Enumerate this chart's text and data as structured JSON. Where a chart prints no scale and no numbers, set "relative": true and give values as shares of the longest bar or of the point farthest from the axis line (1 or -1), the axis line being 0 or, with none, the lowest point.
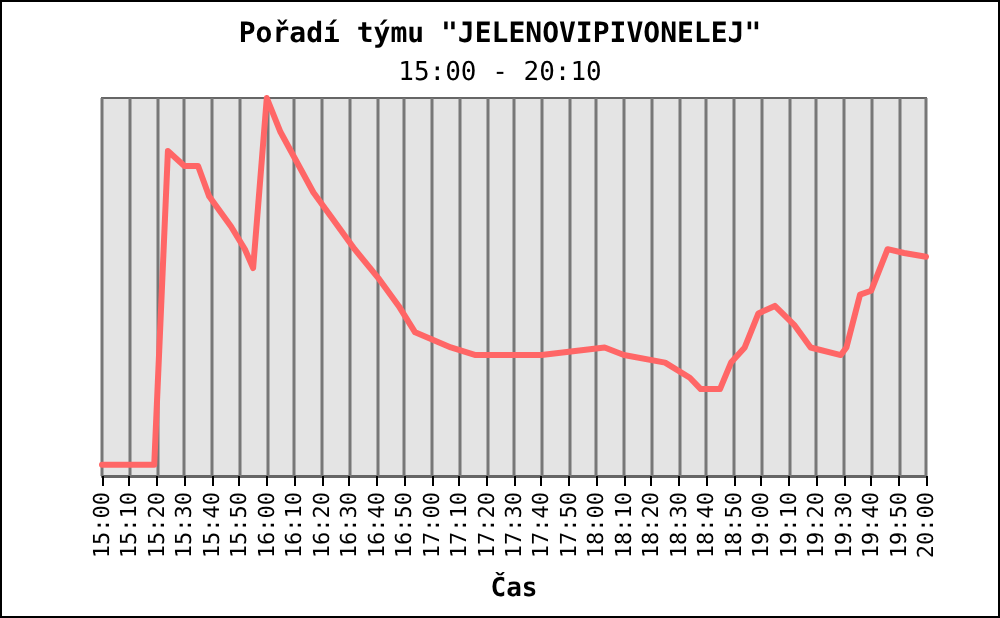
{
  "chart_data": {
    "type": "line",
    "title": "Pořadí týmu \"JELENOVIPIVONELEJ\"",
    "subtitle": "15:00 - 20:10",
    "xlabel": "Čas",
    "relative": true,
    "grid": "x",
    "marker": "none",
    "line_style": "solid",
    "xlim": [
      15,
      20
    ],
    "xticks": [
      {
        "value": 15,
        "label": "15:00"
      },
      {
        "value": 15.1667,
        "label": "15:10"
      },
      {
        "value": 15.3333,
        "label": "15:20"
      },
      {
        "value": 15.5,
        "label": "15:30"
      },
      {
        "value": 15.6667,
        "label": "15:40"
      },
      {
        "value": 15.8333,
        "label": "15:50"
      },
      {
        "value": 16,
        "label": "16:00"
      },
      {
        "value": 16.1667,
        "label": "16:10"
      },
      {
        "value": 16.3333,
        "label": "16:20"
      },
      {
        "value": 16.5,
        "label": "16:30"
      },
      {
        "value": 16.6667,
        "label": "16:40"
      },
      {
        "value": 16.8333,
        "label": "16:50"
      },
      {
        "value": 17,
        "label": "17:00"
      },
      {
        "value": 17.1667,
        "label": "17:10"
      },
      {
        "value": 17.3333,
        "label": "17:20"
      },
      {
        "value": 17.5,
        "label": "17:30"
      },
      {
        "value": 17.6667,
        "label": "17:40"
      },
      {
        "value": 17.8333,
        "label": "17:50"
      },
      {
        "value": 18,
        "label": "18:00"
      },
      {
        "value": 18.1667,
        "label": "18:10"
      },
      {
        "value": 18.3333,
        "label": "18:20"
      },
      {
        "value": 18.5,
        "label": "18:30"
      },
      {
        "value": 18.6667,
        "label": "18:40"
      },
      {
        "value": 18.8333,
        "label": "18:50"
      },
      {
        "value": 19,
        "label": "19:00"
      },
      {
        "value": 19.1667,
        "label": "19:10"
      },
      {
        "value": 19.3333,
        "label": "19:20"
      },
      {
        "value": 19.5,
        "label": "19:30"
      },
      {
        "value": 19.6667,
        "label": "19:40"
      },
      {
        "value": 19.8333,
        "label": "19:50"
      },
      {
        "value": 20,
        "label": "20:00"
      }
    ],
    "series": [
      {
        "color": "#ff6666",
        "x": [
          15,
          15.083,
          15.167,
          15.25,
          15.317,
          15.4,
          15.5,
          15.583,
          15.65,
          15.783,
          15.867,
          15.917,
          16,
          16.083,
          16.183,
          16.283,
          16.4,
          16.533,
          16.683,
          16.8,
          16.9,
          17.117,
          17.267,
          17.667,
          18.05,
          18.167,
          18.417,
          18.567,
          18.633,
          18.75,
          18.817,
          18.9,
          18.983,
          19.083,
          19.2,
          19.3,
          19.483,
          19.517,
          19.6,
          19.667,
          19.767,
          19.867,
          20
        ],
        "values": [
          0.03,
          0.03,
          0.03,
          0.03,
          0.03,
          0.86,
          0.82,
          0.82,
          0.74,
          0.66,
          0.6,
          0.55,
          1,
          0.91,
          0.83,
          0.75,
          0.68,
          0.6,
          0.52,
          0.45,
          0.38,
          0.34,
          0.32,
          0.32,
          0.34,
          0.32,
          0.3,
          0.26,
          0.23,
          0.23,
          0.3,
          0.34,
          0.43,
          0.45,
          0.4,
          0.34,
          0.32,
          0.34,
          0.48,
          0.49,
          0.6,
          0.59,
          0.58
        ]
      }
    ]
  }
}
